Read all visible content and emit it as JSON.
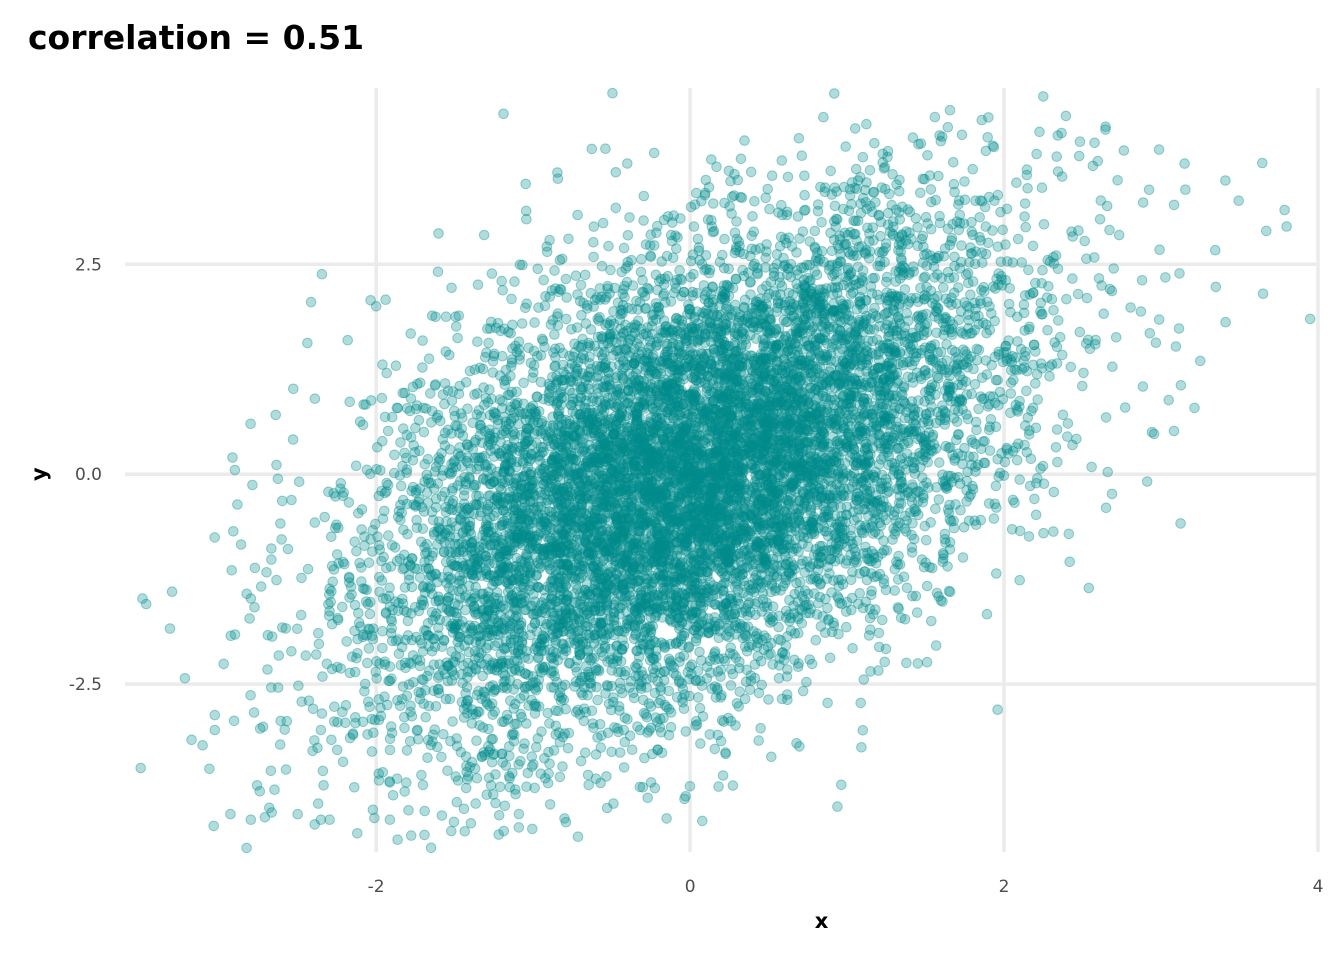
{
  "chart_data": {
    "type": "scatter",
    "title": "correlation = 0.51",
    "xlabel": "x",
    "ylabel": "y",
    "xlim": [
      -3.6,
      4.0
    ],
    "ylim": [
      -4.5,
      4.6
    ],
    "x_ticks": [
      -2,
      0,
      2,
      4
    ],
    "x_tick_labels": [
      "-2",
      "0",
      "2",
      "4"
    ],
    "y_ticks": [
      -2.5,
      0.0,
      2.5
    ],
    "y_tick_labels": [
      "-2.5",
      "0.0",
      "2.5"
    ],
    "grid": true,
    "legend": "none",
    "point_color": "#008b8b",
    "point_alpha": 0.3,
    "n_points": 10000,
    "correlation": 0.51,
    "x_mean": 0,
    "x_sd": 1,
    "y_mean": 0,
    "y_sd": 1.5,
    "outlier_points": [
      {
        "x": -3.5,
        "y": -3.5
      },
      {
        "x": -3.3,
        "y": -1.4
      },
      {
        "x": -2.9,
        "y": 0.05
      },
      {
        "x": -2.8,
        "y": 0.6
      },
      {
        "x": -2.5,
        "y": -4.05
      },
      {
        "x": -1.65,
        "y": -4.45
      },
      {
        "x": -0.8,
        "y": -4.1
      },
      {
        "x": -0.15,
        "y": -4.1
      },
      {
        "x": 1.1,
        "y": -3.05
      },
      {
        "x": 2.25,
        "y": 4.5
      },
      {
        "x": 1.9,
        "y": 4.25
      },
      {
        "x": 3.15,
        "y": 3.7
      },
      {
        "x": 3.8,
        "y": 2.95
      },
      {
        "x": 3.65,
        "y": 2.15
      },
      {
        "x": 3.95,
        "y": 1.85
      },
      {
        "x": 3.25,
        "y": 1.35
      },
      {
        "x": -2.0,
        "y": 2.0
      },
      {
        "x": 2.65,
        "y": -0.4
      }
    ]
  }
}
